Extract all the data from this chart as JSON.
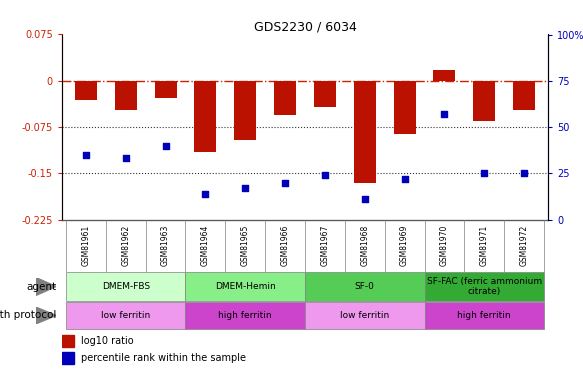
{
  "title": "GDS2230 / 6034",
  "samples": [
    "GSM81961",
    "GSM81962",
    "GSM81963",
    "GSM81964",
    "GSM81965",
    "GSM81966",
    "GSM81967",
    "GSM81968",
    "GSM81969",
    "GSM81970",
    "GSM81971",
    "GSM81972"
  ],
  "log10_ratio": [
    -0.032,
    -0.048,
    -0.028,
    -0.115,
    -0.096,
    -0.055,
    -0.042,
    -0.165,
    -0.086,
    0.018,
    -0.065,
    -0.048
  ],
  "percentile_rank": [
    35,
    33,
    40,
    14,
    17,
    20,
    24,
    11,
    22,
    57,
    25,
    25
  ],
  "ylim_left": [
    -0.225,
    0.075
  ],
  "ylim_right": [
    0,
    100
  ],
  "yticks_left": [
    0.075,
    0,
    -0.075,
    -0.15,
    -0.225
  ],
  "yticks_right": [
    100,
    75,
    50,
    25,
    0
  ],
  "bar_color": "#bb1100",
  "dot_color": "#0000bb",
  "agent_groups": [
    {
      "label": "DMEM-FBS",
      "start": 0,
      "end": 3,
      "color": "#ccffcc"
    },
    {
      "label": "DMEM-Hemin",
      "start": 3,
      "end": 6,
      "color": "#88ee88"
    },
    {
      "label": "SF-0",
      "start": 6,
      "end": 9,
      "color": "#55cc55"
    },
    {
      "label": "SF-FAC (ferric ammonium\ncitrate)",
      "start": 9,
      "end": 12,
      "color": "#33aa33"
    }
  ],
  "growth_groups": [
    {
      "label": "low ferritin",
      "start": 0,
      "end": 3,
      "color": "#ee99ee"
    },
    {
      "label": "high ferritin",
      "start": 3,
      "end": 6,
      "color": "#cc44cc"
    },
    {
      "label": "low ferritin",
      "start": 6,
      "end": 9,
      "color": "#ee99ee"
    },
    {
      "label": "high ferritin",
      "start": 9,
      "end": 12,
      "color": "#cc44cc"
    }
  ],
  "hline_color": "#cc2200",
  "grid_color": "#333333",
  "background_color": "#ffffff",
  "label_agent": "agent",
  "label_growth": "growth protocol",
  "legend_bar": "log10 ratio",
  "legend_dot": "percentile rank within the sample",
  "sample_bg": "#cccccc"
}
